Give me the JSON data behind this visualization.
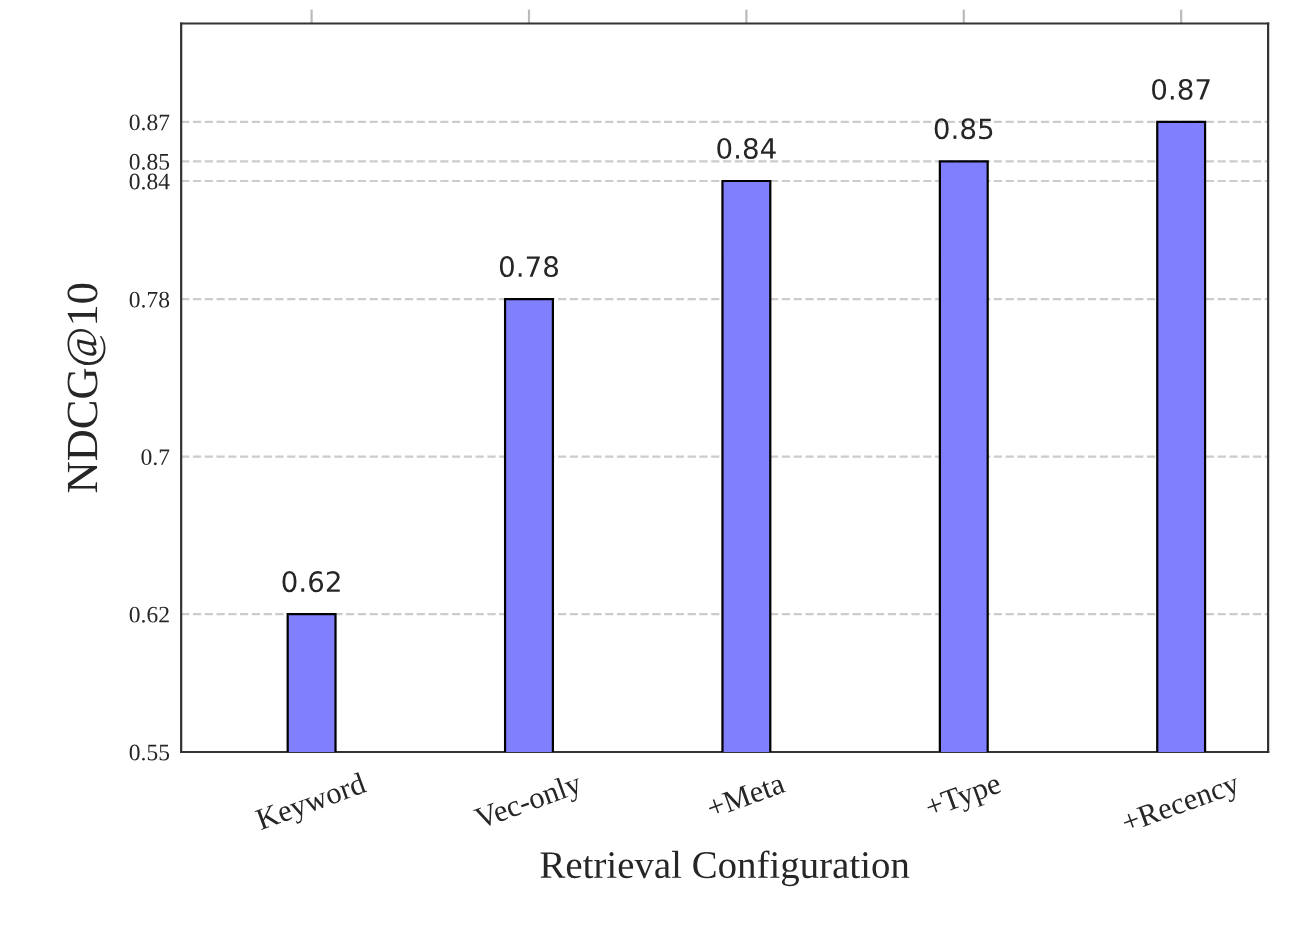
{
  "chart_data": {
    "type": "bar",
    "xlabel": "Retrieval Configuration",
    "ylabel": "NDCG@10",
    "categories": [
      "Keyword",
      "Vec-only",
      "+Meta",
      "+Type",
      "+Recency"
    ],
    "series": [
      {
        "color": "#8080ff",
        "values": [
          0.62,
          0.78,
          0.84,
          0.85,
          0.87
        ]
      }
    ],
    "data_labels": true,
    "ylim": [
      0.55,
      0.92
    ],
    "yticks": [
      0.55,
      0.62,
      0.7,
      0.78,
      0.84,
      0.85,
      0.87
    ],
    "grid": "y"
  }
}
